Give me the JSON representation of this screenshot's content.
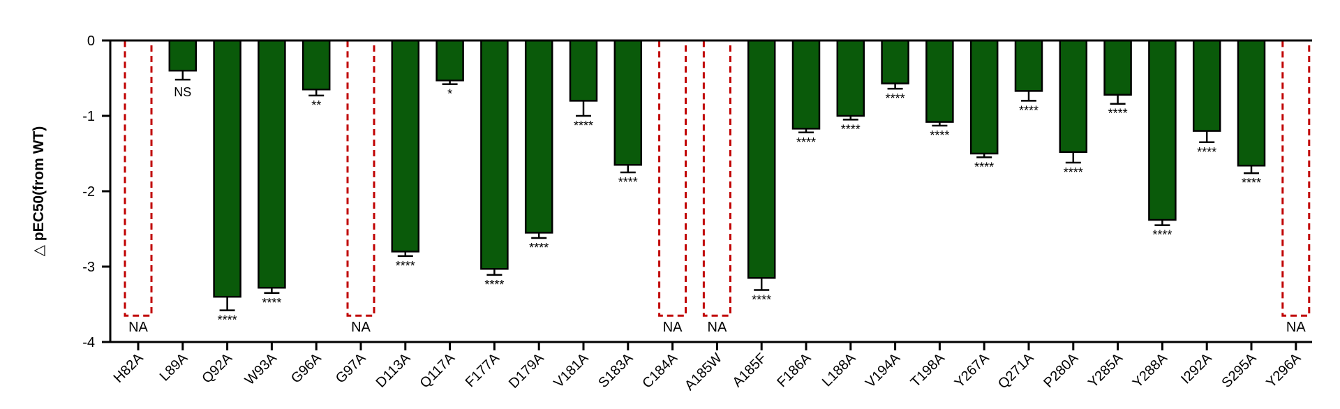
{
  "chart_data": {
    "type": "bar",
    "title": "",
    "xlabel": "",
    "ylabel": "△ pEC50(from WT)",
    "ylim": [
      -4,
      0
    ],
    "yticks": [
      0,
      -1,
      -2,
      -3,
      -4
    ],
    "ytick_labels": [
      "0",
      "-1",
      "-2",
      "-3",
      "-4"
    ],
    "grid": false,
    "legend": "none",
    "colors": {
      "bar": "#0a5a0a",
      "na_outline": "#c00000",
      "axis": "#000000"
    },
    "categories": [
      "H82A",
      "L89A",
      "Q92A",
      "W93A",
      "G96A",
      "G97A",
      "D113A",
      "Q117A",
      "F177A",
      "D179A",
      "V181A",
      "S183A",
      "C184A",
      "A185W",
      "A185F",
      "F186A",
      "L188A",
      "V194A",
      "T198A",
      "Y267A",
      "Q271A",
      "P280A",
      "Y285A",
      "Y288A",
      "I292A",
      "S295A",
      "Y296A"
    ],
    "values": [
      null,
      -0.4,
      -3.4,
      -3.28,
      -0.65,
      null,
      -2.8,
      -0.53,
      -3.03,
      -2.55,
      -0.8,
      -1.65,
      null,
      null,
      -3.15,
      -1.17,
      -1.0,
      -0.57,
      -1.08,
      -1.5,
      -0.67,
      -1.48,
      -0.72,
      -2.38,
      -1.2,
      -1.66,
      null
    ],
    "errors": [
      null,
      0.12,
      0.18,
      0.07,
      0.08,
      null,
      0.06,
      0.05,
      0.08,
      0.07,
      0.2,
      0.1,
      null,
      null,
      0.16,
      0.05,
      0.05,
      0.07,
      0.05,
      0.05,
      0.13,
      0.14,
      0.12,
      0.07,
      0.15,
      0.1,
      null
    ],
    "annotations": [
      "NA",
      "NS",
      "****",
      "****",
      "**",
      "NA",
      "****",
      "*",
      "****",
      "****",
      "****",
      "****",
      "NA",
      "NA",
      "****",
      "****",
      "****",
      "****",
      "****",
      "****",
      "****",
      "****",
      "****",
      "****",
      "****",
      "****",
      "NA"
    ],
    "na_placeholder_value": -3.65
  }
}
